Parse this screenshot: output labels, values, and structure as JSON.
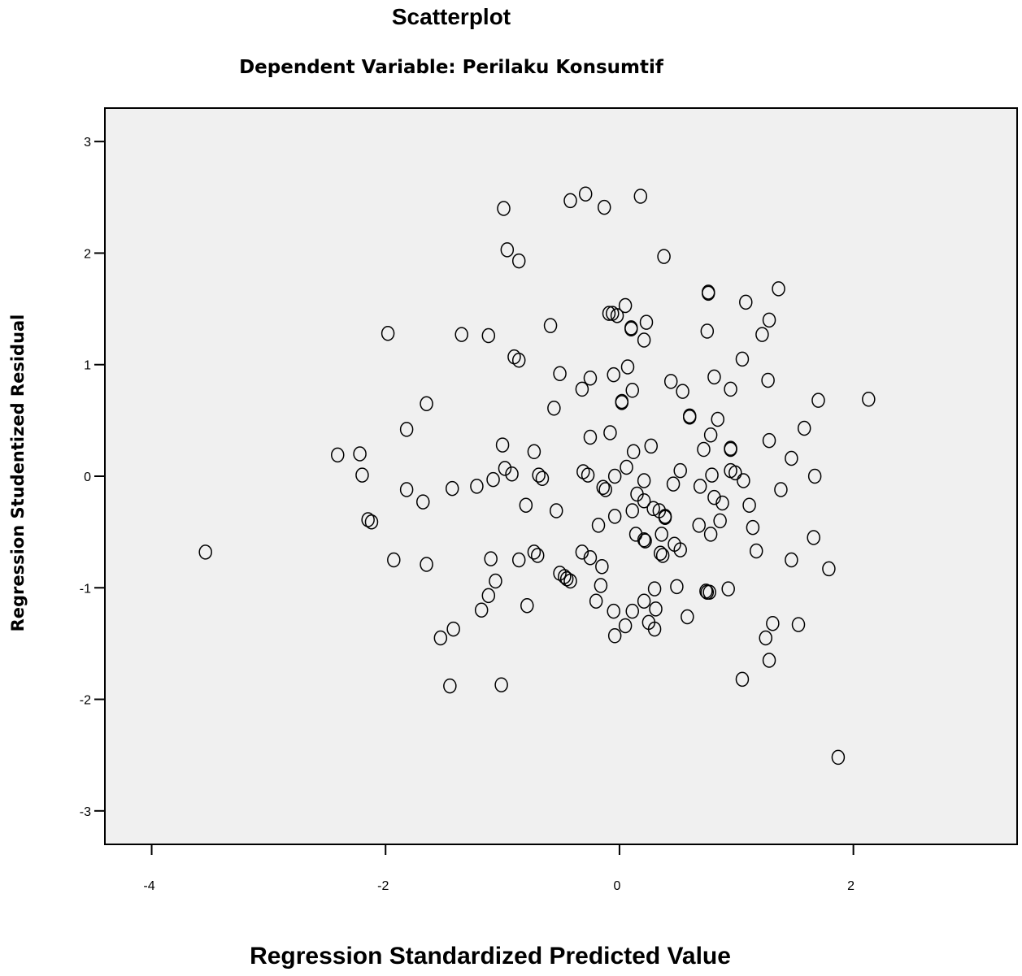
{
  "chart_data": {
    "type": "scatter",
    "title": "Scatterplot",
    "subtitle": "Dependent Variable: Perilaku Konsumtif",
    "xlabel": "Regression Standardized Predicted Value",
    "ylabel": "Regression Studentized Residual",
    "xlim": [
      -4.4,
      3.4
    ],
    "ylim": [
      -3.3,
      3.3
    ],
    "xticks": [
      -4,
      -2,
      0,
      2
    ],
    "yticks": [
      -3,
      -2,
      -1,
      0,
      1,
      2,
      3
    ],
    "xtick_labels": [
      "-4",
      "-2",
      "0",
      "2"
    ],
    "ytick_labels": [
      "-3",
      "-2",
      "-1",
      "0",
      "1",
      "2",
      "3"
    ],
    "grid": false,
    "legend": "none",
    "marker": "open-circle",
    "plot_background": "#f0f0f0",
    "points": [
      [
        -3.54,
        -0.68
      ],
      [
        -2.41,
        0.19
      ],
      [
        -2.22,
        0.2
      ],
      [
        -2.2,
        0.01
      ],
      [
        -2.15,
        -0.39
      ],
      [
        -2.12,
        -0.41
      ],
      [
        -1.98,
        1.28
      ],
      [
        -1.93,
        -0.75
      ],
      [
        -1.82,
        -0.12
      ],
      [
        -1.82,
        0.42
      ],
      [
        -1.68,
        -0.23
      ],
      [
        -1.65,
        0.65
      ],
      [
        -1.65,
        -0.79
      ],
      [
        -1.53,
        -1.45
      ],
      [
        -1.45,
        -1.88
      ],
      [
        -1.43,
        -0.11
      ],
      [
        -1.42,
        -1.37
      ],
      [
        -1.35,
        1.27
      ],
      [
        -1.22,
        -0.09
      ],
      [
        -1.18,
        -1.2
      ],
      [
        -1.12,
        -1.07
      ],
      [
        -1.12,
        1.26
      ],
      [
        -1.1,
        -0.74
      ],
      [
        -1.08,
        -0.03
      ],
      [
        -1.06,
        -0.94
      ],
      [
        -1.01,
        -1.87
      ],
      [
        -1.0,
        0.28
      ],
      [
        -0.99,
        2.4
      ],
      [
        -0.98,
        0.07
      ],
      [
        -0.96,
        2.03
      ],
      [
        -0.92,
        0.02
      ],
      [
        -0.9,
        1.07
      ],
      [
        -0.86,
        1.04
      ],
      [
        -0.86,
        -0.75
      ],
      [
        -0.86,
        1.93
      ],
      [
        -0.8,
        -0.26
      ],
      [
        -0.79,
        -1.16
      ],
      [
        -0.73,
        -0.68
      ],
      [
        -0.73,
        0.22
      ],
      [
        -0.7,
        -0.71
      ],
      [
        -0.69,
        0.01
      ],
      [
        -0.66,
        -0.02
      ],
      [
        -0.59,
        1.35
      ],
      [
        -0.56,
        0.61
      ],
      [
        -0.54,
        -0.31
      ],
      [
        -0.51,
        0.92
      ],
      [
        -0.51,
        -0.87
      ],
      [
        -0.47,
        -0.9
      ],
      [
        -0.45,
        -0.92
      ],
      [
        -0.42,
        -0.94
      ],
      [
        -0.42,
        2.47
      ],
      [
        -0.32,
        -0.68
      ],
      [
        -0.32,
        0.78
      ],
      [
        -0.31,
        0.04
      ],
      [
        -0.29,
        2.53
      ],
      [
        -0.27,
        0.01
      ],
      [
        -0.25,
        -0.73
      ],
      [
        -0.25,
        0.35
      ],
      [
        -0.25,
        0.88
      ],
      [
        -0.2,
        -1.12
      ],
      [
        -0.18,
        -0.44
      ],
      [
        -0.16,
        -0.98
      ],
      [
        -0.15,
        -0.81
      ],
      [
        -0.14,
        -0.1
      ],
      [
        -0.13,
        2.41
      ],
      [
        -0.12,
        -0.12
      ],
      [
        -0.09,
        1.46
      ],
      [
        -0.08,
        0.39
      ],
      [
        -0.06,
        1.46
      ],
      [
        -0.05,
        -1.21
      ],
      [
        -0.05,
        0.91
      ],
      [
        -0.04,
        -1.43
      ],
      [
        -0.04,
        -0.36
      ],
      [
        -0.04,
        0.0
      ],
      [
        -0.02,
        1.44
      ],
      [
        0.02,
        0.66
      ],
      [
        0.02,
        0.67
      ],
      [
        0.05,
        -1.34
      ],
      [
        0.05,
        1.53
      ],
      [
        0.06,
        0.08
      ],
      [
        0.07,
        0.98
      ],
      [
        0.1,
        1.33
      ],
      [
        0.1,
        1.32
      ],
      [
        0.11,
        -0.31
      ],
      [
        0.11,
        0.77
      ],
      [
        0.11,
        -1.21
      ],
      [
        0.12,
        0.22
      ],
      [
        0.14,
        -0.52
      ],
      [
        0.15,
        -0.16
      ],
      [
        0.18,
        2.51
      ],
      [
        0.21,
        -0.04
      ],
      [
        0.21,
        -0.22
      ],
      [
        0.21,
        -0.57
      ],
      [
        0.21,
        1.22
      ],
      [
        0.21,
        -1.12
      ],
      [
        0.22,
        -0.58
      ],
      [
        0.23,
        1.38
      ],
      [
        0.25,
        -1.31
      ],
      [
        0.27,
        0.27
      ],
      [
        0.29,
        -0.29
      ],
      [
        0.3,
        -1.01
      ],
      [
        0.3,
        -1.37
      ],
      [
        0.31,
        -1.19
      ],
      [
        0.34,
        -0.31
      ],
      [
        0.35,
        -0.69
      ],
      [
        0.36,
        -0.52
      ],
      [
        0.37,
        -0.71
      ],
      [
        0.38,
        1.97
      ],
      [
        0.39,
        -0.36
      ],
      [
        0.39,
        -0.37
      ],
      [
        0.44,
        0.85
      ],
      [
        0.46,
        -0.07
      ],
      [
        0.47,
        -0.61
      ],
      [
        0.49,
        -0.99
      ],
      [
        0.52,
        0.05
      ],
      [
        0.52,
        -0.66
      ],
      [
        0.54,
        0.76
      ],
      [
        0.58,
        -1.26
      ],
      [
        0.6,
        0.54
      ],
      [
        0.6,
        0.53
      ],
      [
        0.68,
        -0.44
      ],
      [
        0.69,
        -0.09
      ],
      [
        0.72,
        0.24
      ],
      [
        0.74,
        -1.03
      ],
      [
        0.75,
        1.3
      ],
      [
        0.75,
        -1.04
      ],
      [
        0.76,
        1.64
      ],
      [
        0.76,
        1.65
      ],
      [
        0.77,
        -1.04
      ],
      [
        0.78,
        0.37
      ],
      [
        0.78,
        -0.52
      ],
      [
        0.79,
        0.01
      ],
      [
        0.81,
        0.89
      ],
      [
        0.81,
        -0.19
      ],
      [
        0.84,
        0.51
      ],
      [
        0.86,
        -0.4
      ],
      [
        0.88,
        -0.24
      ],
      [
        0.93,
        -1.01
      ],
      [
        0.95,
        0.25
      ],
      [
        0.95,
        0.24
      ],
      [
        0.95,
        0.05
      ],
      [
        0.95,
        0.78
      ],
      [
        0.99,
        0.03
      ],
      [
        1.05,
        1.05
      ],
      [
        1.05,
        -1.82
      ],
      [
        1.06,
        -0.04
      ],
      [
        1.08,
        1.56
      ],
      [
        1.11,
        -0.26
      ],
      [
        1.14,
        -0.46
      ],
      [
        1.17,
        -0.67
      ],
      [
        1.22,
        1.27
      ],
      [
        1.25,
        -1.45
      ],
      [
        1.27,
        0.86
      ],
      [
        1.28,
        0.32
      ],
      [
        1.28,
        1.4
      ],
      [
        1.28,
        -1.65
      ],
      [
        1.31,
        -1.32
      ],
      [
        1.36,
        1.68
      ],
      [
        1.38,
        -0.12
      ],
      [
        1.47,
        -0.75
      ],
      [
        1.47,
        0.16
      ],
      [
        1.53,
        -1.33
      ],
      [
        1.58,
        0.43
      ],
      [
        1.66,
        -0.55
      ],
      [
        1.67,
        0.0
      ],
      [
        1.7,
        0.68
      ],
      [
        1.79,
        -0.83
      ],
      [
        1.87,
        -2.52
      ],
      [
        2.13,
        0.69
      ]
    ]
  }
}
